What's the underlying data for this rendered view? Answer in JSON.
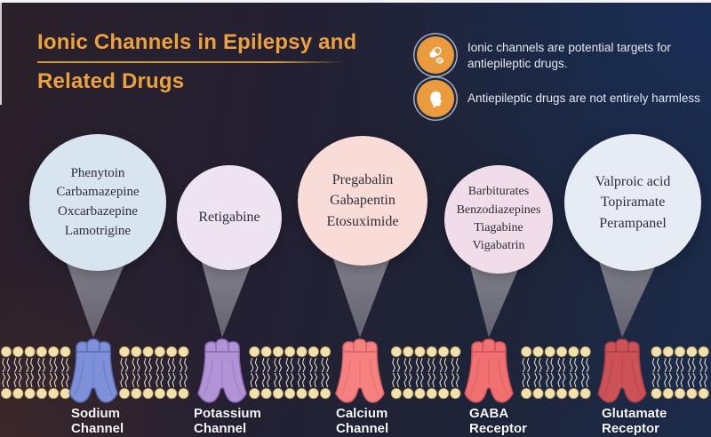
{
  "title": {
    "line1": "Ionic Channels in Epilepsy and",
    "line2": "Related Drugs"
  },
  "notes": [
    {
      "icon": "pills-icon",
      "text": "Ionic channels are potential targets for antiepileptic drugs."
    },
    {
      "icon": "person-icon",
      "text": "Antiepileptic drugs are not entirely harmless"
    }
  ],
  "bubbles": [
    {
      "target": "sodium-channel",
      "fill": "#d9e4f1",
      "drugs": [
        "Phenytoin",
        "Carbamazepine",
        "Oxcarbazepine",
        "Lamotrigine"
      ]
    },
    {
      "target": "potassium-channel",
      "fill": "#eee3f0",
      "drugs": [
        "Retigabine"
      ]
    },
    {
      "target": "calcium-channel",
      "fill": "#f9dcd8",
      "drugs": [
        "Pregabalin",
        "Gabapentin",
        "Etosuximide"
      ]
    },
    {
      "target": "gaba-receptor",
      "fill": "#f0dde9",
      "drugs": [
        "Barbiturates",
        "Benzodiazepines",
        "Tiagabine",
        "Vigabatrin"
      ]
    },
    {
      "target": "glutamate-receptor",
      "fill": "#e6ebf4",
      "drugs": [
        "Valproic acid",
        "Topiramate",
        "Perampanel"
      ]
    }
  ],
  "channels": [
    {
      "label1": "Sodium",
      "label2": "Channel",
      "fill": "#7d90d8",
      "stroke": "#5a68b2"
    },
    {
      "label1": "Potassium",
      "label2": "Channel",
      "fill": "#b294d6",
      "stroke": "#8a68b4"
    },
    {
      "label1": "Calcium",
      "label2": "Channel",
      "fill": "#f5827e",
      "stroke": "#d65f68"
    },
    {
      "label1": "GABA",
      "label2": "Receptor",
      "fill": "#f17170",
      "stroke": "#cf4f58"
    },
    {
      "label1": "Glutamate",
      "label2": "Receptor",
      "fill": "#cd5257",
      "stroke": "#a33c44"
    }
  ],
  "colors": {
    "title": "#eda13c",
    "title_rule": "#cf9a3e",
    "note_badge": "#eb9a3d",
    "note_text": "#e6e9f0",
    "funnel_top": "#a3a2ab",
    "funnel_bottom": "#6c6b76",
    "membrane_head": "#f1e1ac",
    "membrane_head_outline": "#a98e55",
    "membrane_tail": "#efeada",
    "channel_label": "#f5f5f8",
    "bubble_text": "#302e3a",
    "background_left": "#2b2028",
    "background_right": "#1c2b4b"
  }
}
